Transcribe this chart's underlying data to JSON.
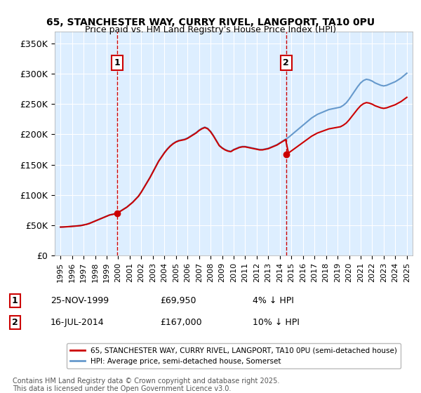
{
  "title1": "65, STANCHESTER WAY, CURRY RIVEL, LANGPORT, TA10 0PU",
  "title2": "Price paid vs. HM Land Registry's House Price Index (HPI)",
  "ylabel_ticks": [
    "£0",
    "£50K",
    "£100K",
    "£150K",
    "£200K",
    "£250K",
    "£300K",
    "£350K"
  ],
  "ytick_values": [
    0,
    50000,
    100000,
    150000,
    200000,
    250000,
    300000,
    350000
  ],
  "ylim": [
    0,
    370000
  ],
  "xlim_start": 1994.5,
  "xlim_end": 2025.5,
  "sale1_date": 1999.9,
  "sale1_price": 69950,
  "sale1_label": "1",
  "sale2_date": 2014.54,
  "sale2_price": 167000,
  "sale2_label": "2",
  "red_line_color": "#cc0000",
  "blue_line_color": "#6699cc",
  "annotation_box_color": "#cc0000",
  "dashed_line_color": "#cc0000",
  "background_color": "#ddeeff",
  "legend_label_red": "65, STANCHESTER WAY, CURRY RIVEL, LANGPORT, TA10 0PU (semi-detached house)",
  "legend_label_blue": "HPI: Average price, semi-detached house, Somerset",
  "table_row1": [
    "1",
    "25-NOV-1999",
    "£69,950",
    "4% ↓ HPI"
  ],
  "table_row2": [
    "2",
    "16-JUL-2014",
    "£167,000",
    "10% ↓ HPI"
  ],
  "footnote": "Contains HM Land Registry data © Crown copyright and database right 2025.\nThis data is licensed under the Open Government Licence v3.0.",
  "xtick_years": [
    1995,
    1996,
    1997,
    1998,
    1999,
    2000,
    2001,
    2002,
    2003,
    2004,
    2005,
    2006,
    2007,
    2008,
    2009,
    2010,
    2011,
    2012,
    2013,
    2014,
    2015,
    2016,
    2017,
    2018,
    2019,
    2020,
    2021,
    2022,
    2023,
    2024,
    2025
  ]
}
